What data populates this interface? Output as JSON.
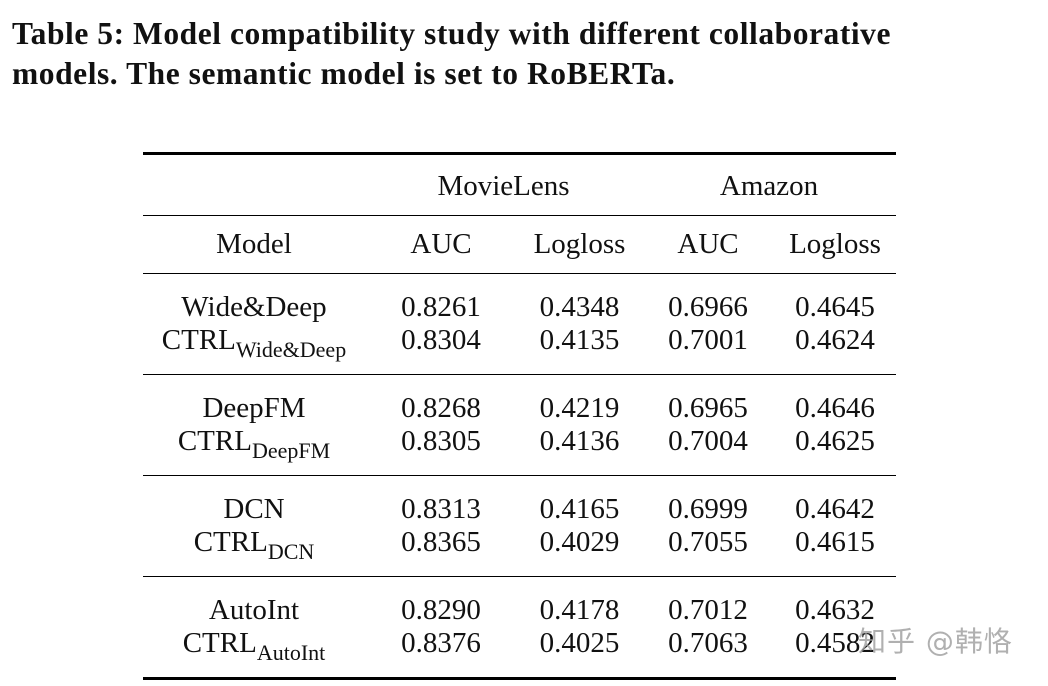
{
  "caption": {
    "line1": "Table 5: Model compatibility study with different collaborative",
    "line2": "models. The semantic model is set to RoBERTa."
  },
  "table": {
    "group_headers": [
      "MovieLens",
      "Amazon"
    ],
    "columns": [
      "Model",
      "AUC",
      "Logloss",
      "AUC",
      "Logloss"
    ],
    "groups": [
      {
        "base": {
          "model": "Wide&Deep",
          "values": [
            "0.8261",
            "0.4348",
            "0.6966",
            "0.4645"
          ]
        },
        "ctrl": {
          "model": "CTRL",
          "sub": "Wide&Deep",
          "values": [
            "0.8304",
            "0.4135",
            "0.7001",
            "0.4624"
          ]
        }
      },
      {
        "base": {
          "model": "DeepFM",
          "values": [
            "0.8268",
            "0.4219",
            "0.6965",
            "0.4646"
          ]
        },
        "ctrl": {
          "model": "CTRL",
          "sub": "DeepFM",
          "values": [
            "0.8305",
            "0.4136",
            "0.7004",
            "0.4625"
          ]
        }
      },
      {
        "base": {
          "model": "DCN",
          "values": [
            "0.8313",
            "0.4165",
            "0.6999",
            "0.4642"
          ]
        },
        "ctrl": {
          "model": "CTRL",
          "sub": "DCN",
          "values": [
            "0.8365",
            "0.4029",
            "0.7055",
            "0.4615"
          ]
        }
      },
      {
        "base": {
          "model": "AutoInt",
          "values": [
            "0.8290",
            "0.4178",
            "0.7012",
            "0.4632"
          ]
        },
        "ctrl": {
          "model": "CTRL",
          "sub": "AutoInt",
          "values": [
            "0.8376",
            "0.4025",
            "0.7063",
            "0.4582"
          ]
        }
      }
    ]
  },
  "watermark": "知乎 @韩恪"
}
